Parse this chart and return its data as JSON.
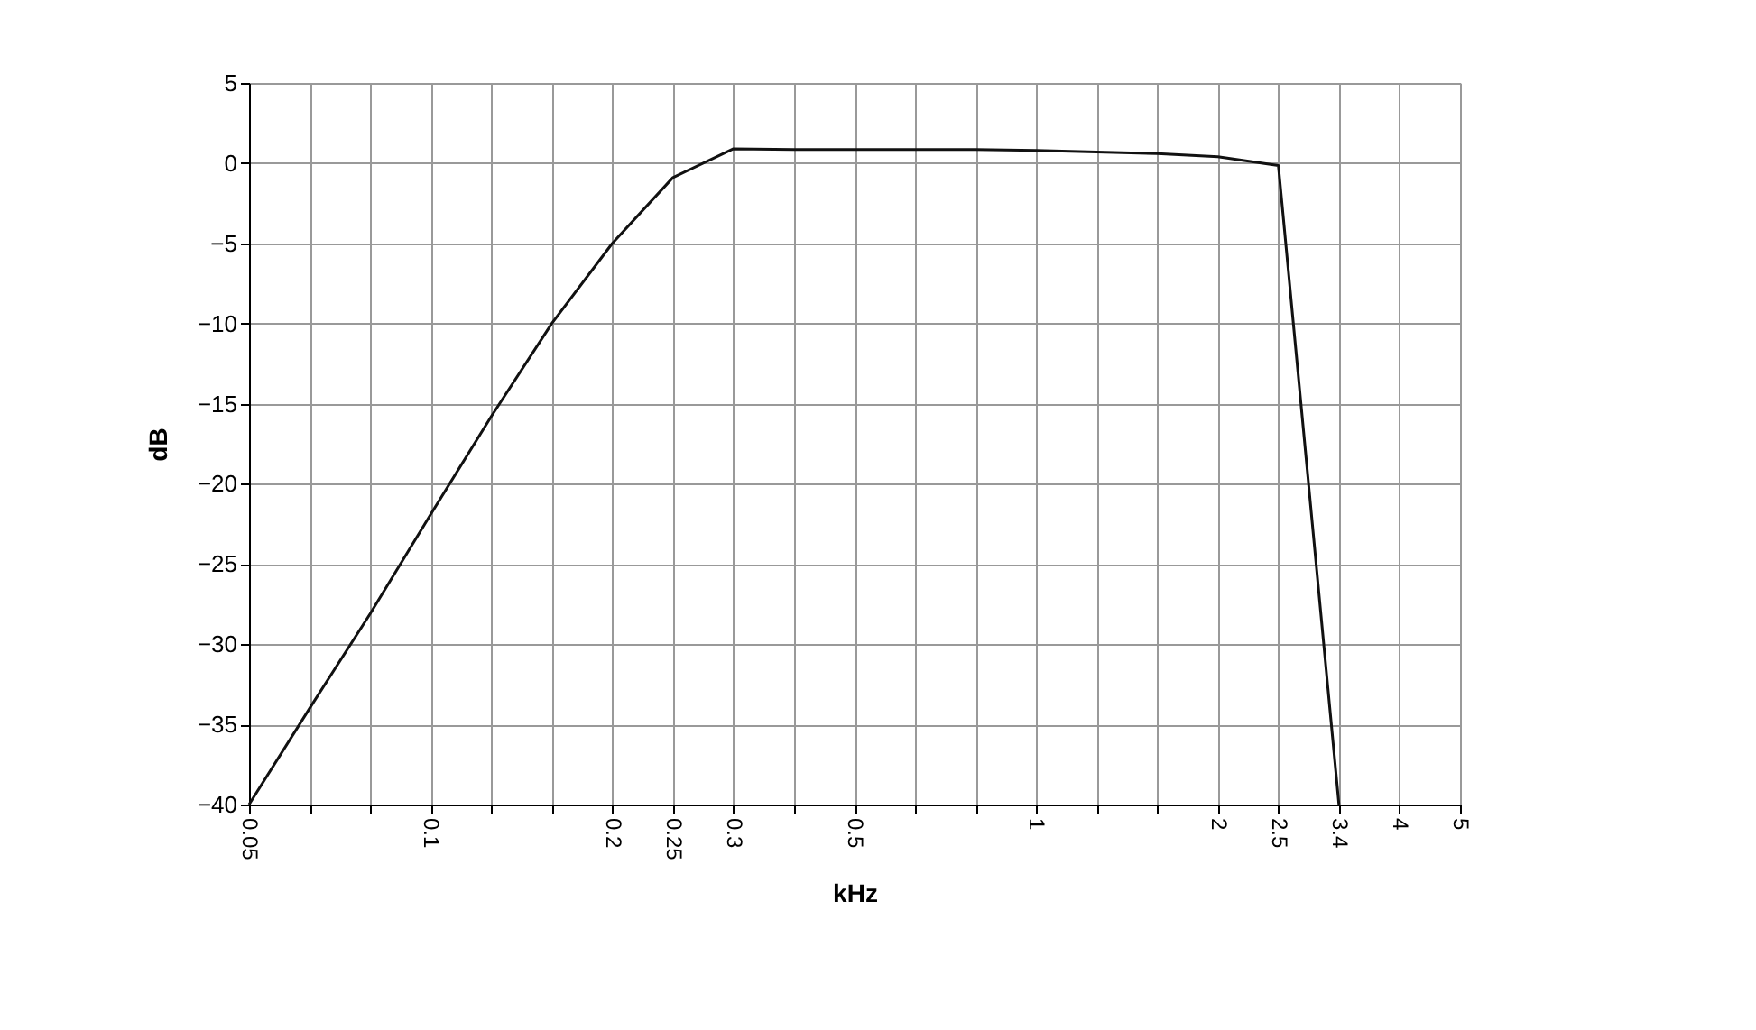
{
  "chart_data": {
    "type": "line",
    "xlabel": "kHz",
    "ylabel": "dB",
    "categories": [
      "0.05",
      null,
      null,
      "0.1",
      null,
      null,
      "0.2",
      "0.25",
      "0.3",
      null,
      "0.5",
      null,
      null,
      "1",
      null,
      null,
      "2",
      "2.5",
      "3.4",
      "4",
      "5"
    ],
    "series": [
      {
        "color": "#111111",
        "values": [
          -40,
          -34,
          -28.1,
          -21.9,
          -15.8,
          -10,
          -5,
          -0.9,
          0.9,
          0.85,
          0.85,
          0.85,
          0.85,
          0.8,
          0.7,
          0.6,
          0.4,
          -0.15,
          -40,
          null,
          null
        ]
      }
    ],
    "ylim": [
      -40,
      5
    ],
    "yticks": [
      -40,
      -35,
      -30,
      -25,
      -20,
      -15,
      -10,
      -5,
      0,
      5
    ],
    "grid": true,
    "legend": false,
    "marker": "none",
    "line_style": "solid"
  }
}
